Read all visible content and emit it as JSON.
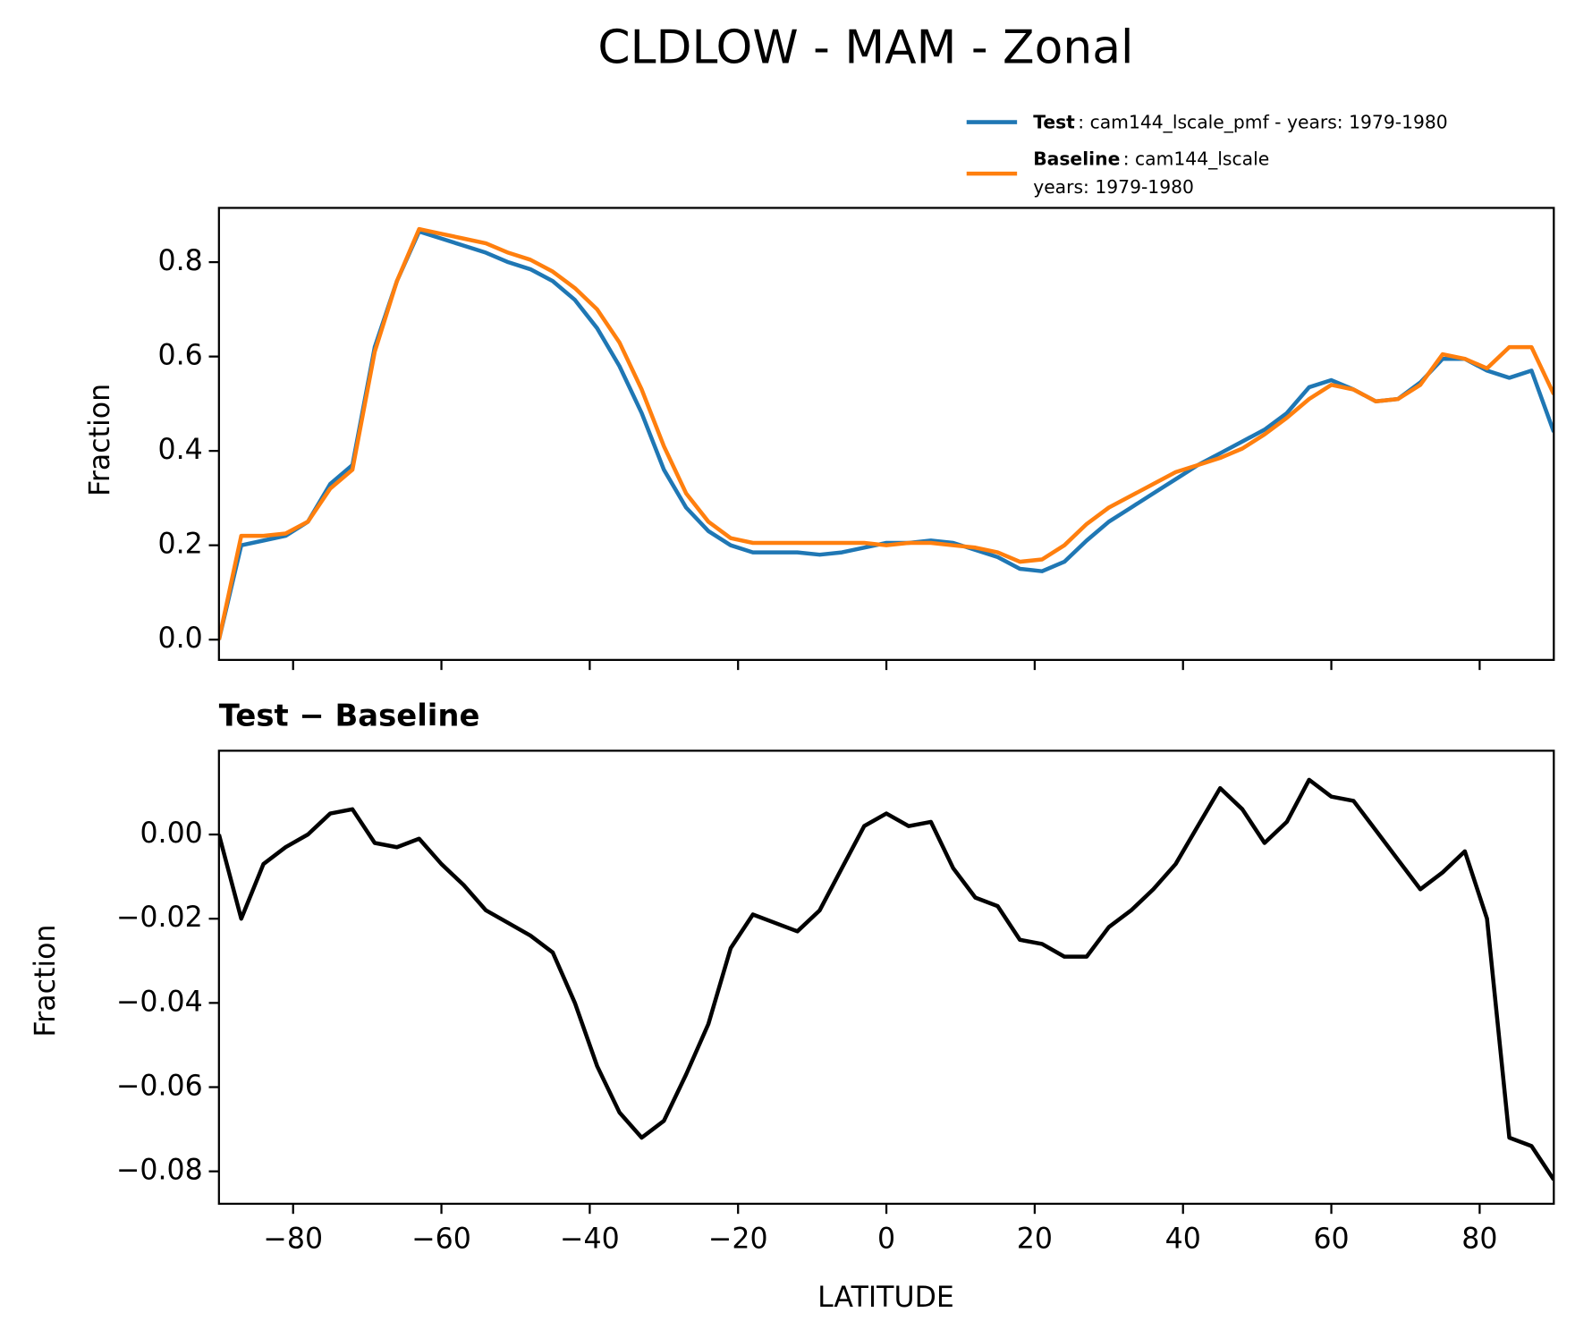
{
  "chart_data": [
    {
      "type": "line",
      "title": "CLDLOW - MAM - Zonal",
      "ylabel": "Fraction",
      "x": [
        -90,
        -87,
        -84,
        -81,
        -78,
        -75,
        -72,
        -69,
        -66,
        -63,
        -60,
        -57,
        -54,
        -51,
        -48,
        -45,
        -42,
        -39,
        -36,
        -33,
        -30,
        -27,
        -24,
        -21,
        -18,
        -15,
        -12,
        -9,
        -6,
        -3,
        0,
        3,
        6,
        9,
        12,
        15,
        18,
        21,
        24,
        27,
        30,
        33,
        36,
        39,
        42,
        45,
        48,
        51,
        54,
        57,
        60,
        63,
        66,
        69,
        72,
        75,
        78,
        81,
        84,
        87,
        90
      ],
      "series": [
        {
          "name": "Test",
          "description": [
            ": cam144_lscale_pmf - years: 1979-1980"
          ],
          "color": "#1f77b4",
          "values": [
            0.0,
            0.2,
            0.21,
            0.22,
            0.25,
            0.33,
            0.37,
            0.62,
            0.76,
            0.865,
            0.85,
            0.835,
            0.82,
            0.8,
            0.785,
            0.76,
            0.72,
            0.66,
            0.58,
            0.48,
            0.36,
            0.28,
            0.23,
            0.2,
            0.185,
            0.185,
            0.185,
            0.18,
            0.185,
            0.195,
            0.205,
            0.205,
            0.21,
            0.205,
            0.19,
            0.175,
            0.15,
            0.145,
            0.165,
            0.21,
            0.25,
            0.28,
            0.31,
            0.34,
            0.37,
            0.395,
            0.42,
            0.445,
            0.48,
            0.535,
            0.55,
            0.53,
            0.505,
            0.51,
            0.545,
            0.595,
            0.595,
            0.57,
            0.555,
            0.57,
            0.44
          ]
        },
        {
          "name": "Baseline",
          "description": [
            ": cam144_lscale",
            "years: 1979-1980"
          ],
          "color": "#ff7f0e",
          "values": [
            0.0,
            0.22,
            0.22,
            0.225,
            0.25,
            0.32,
            0.36,
            0.61,
            0.76,
            0.87,
            0.86,
            0.85,
            0.84,
            0.82,
            0.805,
            0.78,
            0.745,
            0.7,
            0.63,
            0.53,
            0.41,
            0.31,
            0.25,
            0.215,
            0.205,
            0.205,
            0.205,
            0.205,
            0.205,
            0.205,
            0.2,
            0.205,
            0.205,
            0.2,
            0.195,
            0.185,
            0.165,
            0.17,
            0.2,
            0.245,
            0.28,
            0.305,
            0.33,
            0.355,
            0.37,
            0.385,
            0.405,
            0.435,
            0.47,
            0.51,
            0.54,
            0.53,
            0.505,
            0.51,
            0.54,
            0.605,
            0.595,
            0.575,
            0.62,
            0.62,
            0.52
          ]
        }
      ],
      "xlim": [
        -90,
        90
      ],
      "xticks": [
        -80,
        -60,
        -40,
        -20,
        0,
        20,
        40,
        60,
        80
      ],
      "ylim": [
        -0.043,
        0.915
      ],
      "yticks": [
        {
          "value": 0,
          "label": "0.0"
        },
        0.2,
        0.4,
        0.6,
        0.8
      ],
      "legend": "upper right"
    },
    {
      "type": "line",
      "title": "Test − Baseline",
      "ylabel": "Fraction",
      "xlabel": "LATITUDE",
      "x": [
        -90,
        -87,
        -84,
        -81,
        -78,
        -75,
        -72,
        -69,
        -66,
        -63,
        -60,
        -57,
        -54,
        -51,
        -48,
        -45,
        -42,
        -39,
        -36,
        -33,
        -30,
        -27,
        -24,
        -21,
        -18,
        -15,
        -12,
        -9,
        -6,
        -3,
        0,
        3,
        6,
        9,
        12,
        15,
        18,
        21,
        24,
        27,
        30,
        33,
        36,
        39,
        42,
        45,
        48,
        51,
        54,
        57,
        60,
        63,
        66,
        69,
        72,
        75,
        78,
        81,
        84,
        87,
        90
      ],
      "series": [
        {
          "color": "#000000",
          "values": [
            0.0,
            -0.02,
            -0.007,
            -0.003,
            0.0,
            0.005,
            0.006,
            -0.002,
            -0.003,
            -0.001,
            -0.007,
            -0.012,
            -0.018,
            -0.021,
            -0.024,
            -0.028,
            -0.04,
            -0.055,
            -0.066,
            -0.072,
            -0.068,
            -0.057,
            -0.045,
            -0.027,
            -0.019,
            -0.021,
            -0.023,
            -0.018,
            -0.008,
            0.002,
            0.005,
            0.002,
            0.003,
            -0.008,
            -0.015,
            -0.017,
            -0.025,
            -0.026,
            -0.029,
            -0.029,
            -0.022,
            -0.018,
            -0.013,
            -0.007,
            0.002,
            0.011,
            0.006,
            -0.002,
            0.003,
            0.013,
            0.009,
            0.008,
            0.001,
            -0.006,
            -0.013,
            -0.009,
            -0.004,
            -0.02,
            -0.072,
            -0.074,
            -0.082
          ]
        }
      ],
      "xlim": [
        -90,
        90
      ],
      "xticks": [
        {
          "value": -80,
          "label": "−80"
        },
        {
          "value": -60,
          "label": "−60"
        },
        {
          "value": -40,
          "label": "−40"
        },
        {
          "value": -20,
          "label": "−20"
        },
        0,
        20,
        40,
        60,
        80
      ],
      "ylim": [
        -0.0877,
        0.0199
      ],
      "yticks": [
        {
          "value": 0,
          "label": "0.00"
        },
        {
          "value": -0.02,
          "label": "−0.02"
        },
        {
          "value": -0.04,
          "label": "−0.04"
        },
        {
          "value": -0.06,
          "label": "−0.06"
        },
        {
          "value": -0.08,
          "label": "−0.08"
        }
      ]
    }
  ]
}
